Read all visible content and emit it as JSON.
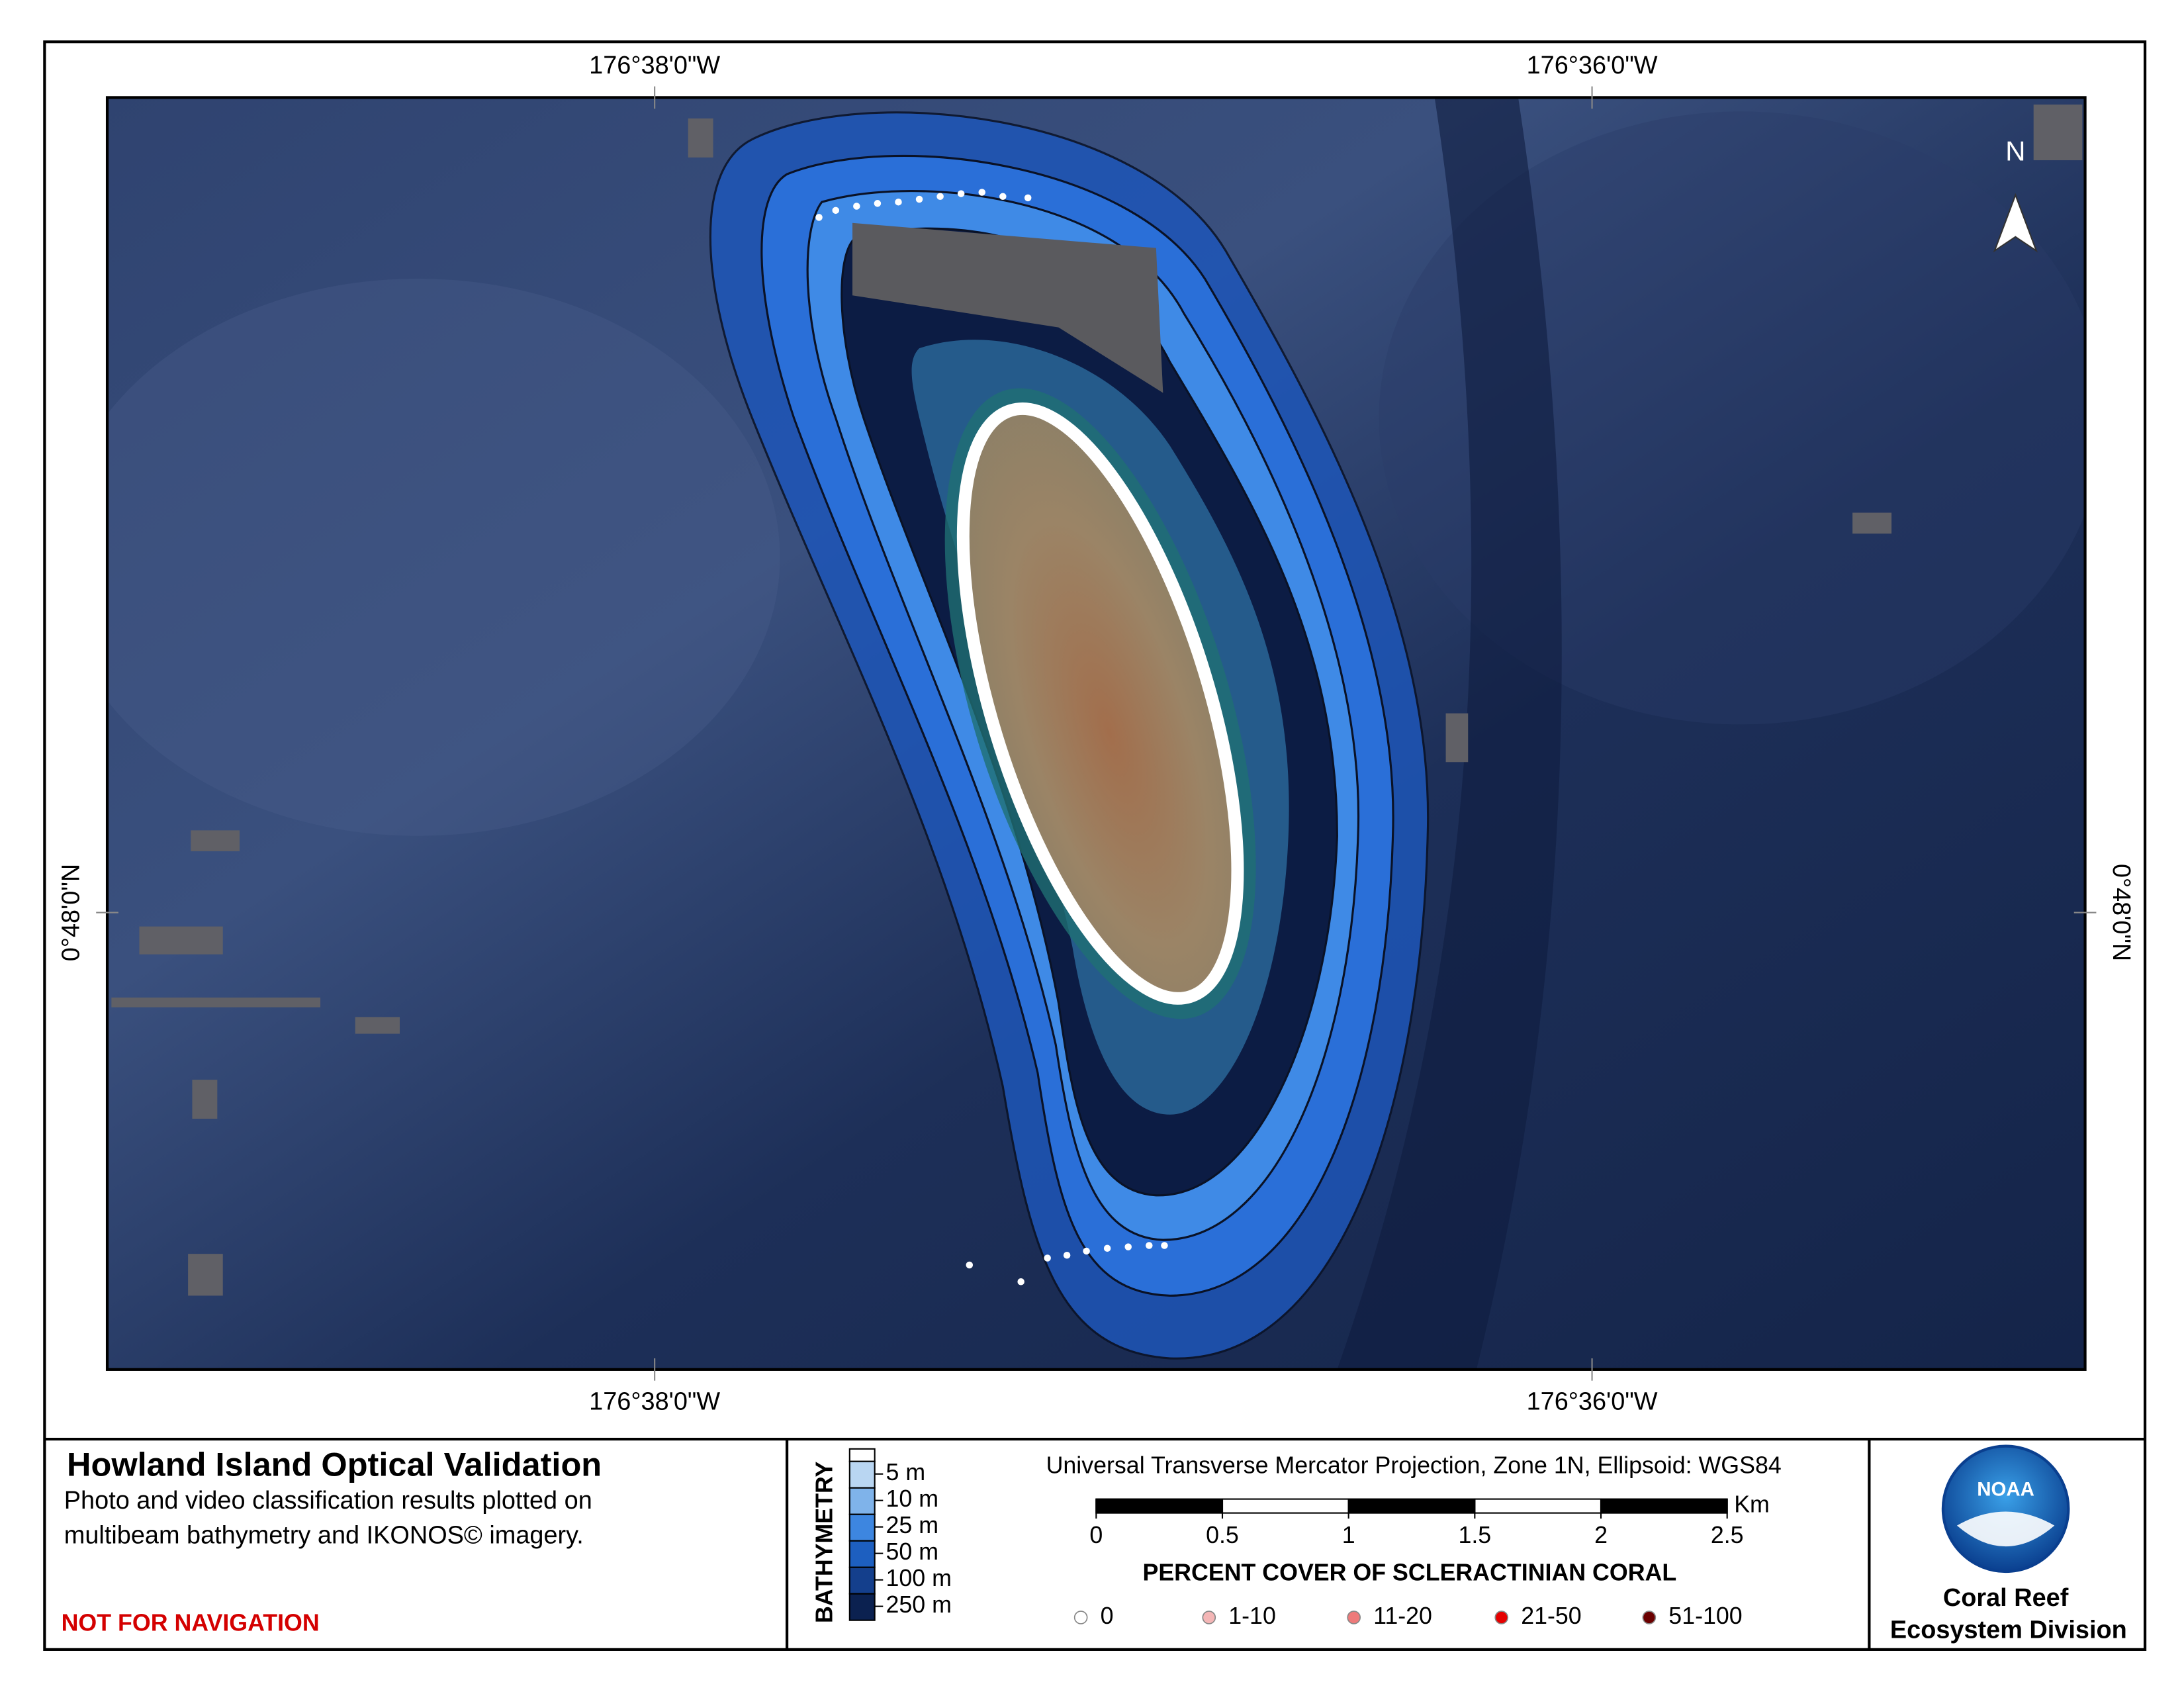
{
  "map": {
    "top_labels": [
      "176°38'0\"W",
      "176°36'0\"W"
    ],
    "bottom_labels": [
      "176°38'0\"W",
      "176°36'0\"W"
    ],
    "left_label": "0°48'0\"N",
    "right_label": "0°48'0\"N",
    "north": "N"
  },
  "title": "Howland Island Optical Validation",
  "subtitle": [
    "Photo and video classification results plotted on",
    "multibeam bathymetry and IKONOS© imagery."
  ],
  "warning": "NOT FOR NAVIGATION",
  "bathymetry": {
    "title": "BATHYMETRY",
    "classes": [
      {
        "label": "5 m",
        "color": "#b9d6f2"
      },
      {
        "label": "10 m",
        "color": "#7fb3ea"
      },
      {
        "label": "25 m",
        "color": "#3d86e0"
      },
      {
        "label": "50 m",
        "color": "#1d5fc0"
      },
      {
        "label": "100 m",
        "color": "#143f8c"
      },
      {
        "label": "250 m",
        "color": "#0b2150"
      }
    ]
  },
  "projection": "Universal Transverse Mercator Projection, Zone 1N, Ellipsoid: WGS84",
  "scale_bar": {
    "ticks": [
      0,
      0.5,
      1,
      1.5,
      2,
      2.5
    ],
    "unit": "Km"
  },
  "coral_cover": {
    "title": "PERCENT COVER OF SCLERACTINIAN CORAL",
    "classes": [
      {
        "label": "0",
        "color": "#ffffff"
      },
      {
        "label": "1-10",
        "color": "#f4b6b6"
      },
      {
        "label": "11-20",
        "color": "#ee7a7a"
      },
      {
        "label": "21-50",
        "color": "#e60000"
      },
      {
        "label": "51-100",
        "color": "#6b0000"
      }
    ]
  },
  "logo": {
    "emblem": "NOAA",
    "lines": [
      "Coral Reef",
      "Ecosystem Division"
    ]
  }
}
